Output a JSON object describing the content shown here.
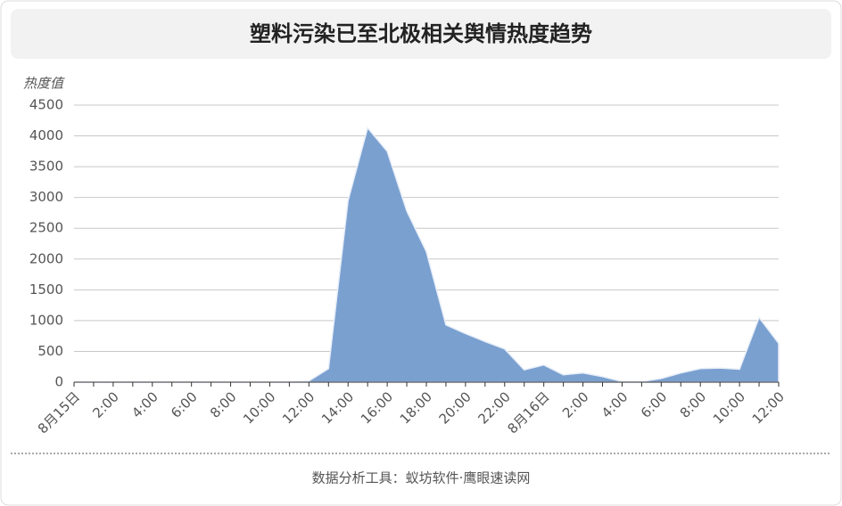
{
  "chart_data": {
    "type": "area",
    "title": "塑料污染已至北极相关舆情热度趋势",
    "y_label": "热度值",
    "source": "数据分析工具：蚁坊软件·鹰眼速读网",
    "categories": [
      "8月15日",
      null,
      "2:00",
      null,
      "4:00",
      null,
      "6:00",
      null,
      "8:00",
      null,
      "10:00",
      null,
      "12:00",
      null,
      "14:00",
      null,
      "16:00",
      null,
      "18:00",
      null,
      "20:00",
      null,
      "22:00",
      null,
      "8月16日",
      null,
      "2:00",
      null,
      "4:00",
      null,
      "6:00",
      null,
      "8:00",
      null,
      "10:00",
      null,
      "12:00"
    ],
    "values": [
      0,
      0,
      0,
      0,
      0,
      0,
      0,
      0,
      0,
      0,
      0,
      0,
      20,
      220,
      2950,
      4130,
      3750,
      2780,
      2120,
      930,
      790,
      660,
      540,
      200,
      280,
      120,
      150,
      90,
      10,
      10,
      60,
      150,
      220,
      230,
      210,
      1050,
      630
    ],
    "color": "#7aa0d0",
    "ylim": [
      0,
      4500
    ],
    "yticks": [
      0,
      500,
      1000,
      1500,
      2000,
      2500,
      3000,
      3500,
      4000,
      4500
    ],
    "grid": true
  }
}
